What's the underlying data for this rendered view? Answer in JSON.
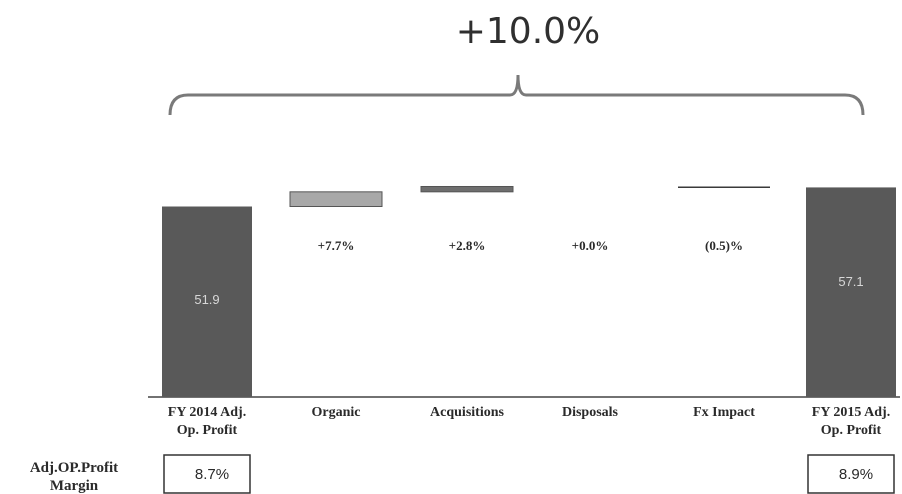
{
  "chart_data": {
    "type": "bar",
    "subtype": "waterfall",
    "categories": [
      "FY 2014 Adj.\nOp. Profit",
      "Organic",
      "Acquisitions",
      "Disposals",
      "Fx Impact",
      "FY 2015 Adj.\nOp. Profit"
    ],
    "start_value": 51.9,
    "end_value": 57.1,
    "steps": [
      {
        "category": "Organic",
        "label": "+7.7%",
        "percent": 7.7
      },
      {
        "category": "Acquisitions",
        "label": "+2.8%",
        "percent": 2.8
      },
      {
        "category": "Disposals",
        "label": "+0.0%",
        "percent": 0.0
      },
      {
        "category": "Fx Impact",
        "label": "(0.5)%",
        "percent": -0.5
      }
    ],
    "value_labels": [
      "51.9",
      "57.1"
    ],
    "total_change_label": "+10.0%",
    "margin_row": {
      "label": "Adj.OP.Profit\nMargin",
      "values": [
        "8.7%",
        "",
        "",
        "",
        "",
        "8.9%"
      ]
    },
    "colors": {
      "total_bar": "#595959",
      "organic_bar": "#a8a8a8",
      "acquisitions_bar": "#6e6e6e",
      "fx_line": "#3a3a3a",
      "bracket": "#7a7a7a"
    },
    "grid": false,
    "legend": "none"
  }
}
